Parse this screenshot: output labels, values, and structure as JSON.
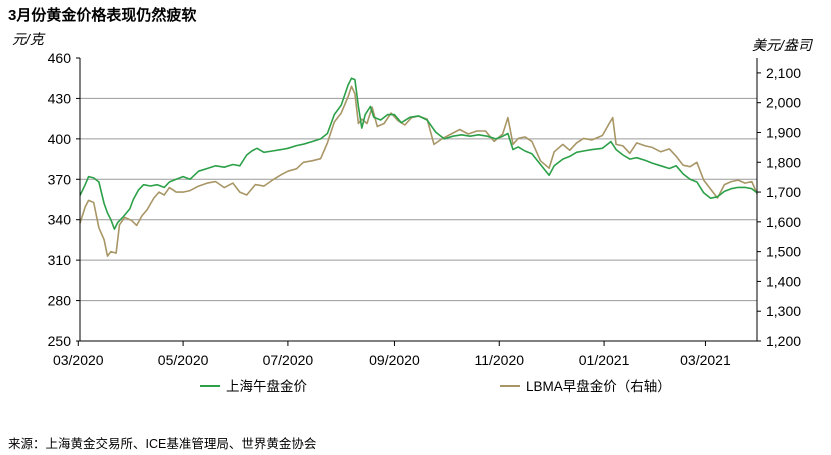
{
  "chart_data": {
    "type": "line",
    "title": "3月份黄金价格表现仍然疲软",
    "left_unit": "元/克",
    "right_unit": "美元/盎司",
    "x_range": [
      "2020-03-02",
      "2021-03-31"
    ],
    "x_ticks": [
      {
        "label": "03/2020",
        "date": "2020-03-01"
      },
      {
        "label": "05/2020",
        "date": "2020-05-01"
      },
      {
        "label": "07/2020",
        "date": "2020-07-01"
      },
      {
        "label": "09/2020",
        "date": "2020-09-01"
      },
      {
        "label": "11/2020",
        "date": "2020-11-01"
      },
      {
        "label": "01/2021",
        "date": "2021-01-01"
      },
      {
        "label": "03/2021",
        "date": "2021-03-01"
      }
    ],
    "y_left": {
      "min": 250,
      "max": 460,
      "ticks": [
        "250",
        "280",
        "310",
        "340",
        "370",
        "400",
        "430",
        "460"
      ]
    },
    "y_right": {
      "min": 1200,
      "max": 2150,
      "ticks": [
        "1,200",
        "1,300",
        "1,400",
        "1,500",
        "1,600",
        "1,700",
        "1,800",
        "1,900",
        "2,000",
        "2,100"
      ]
    },
    "grid": "horizontal",
    "legend_position": "bottom",
    "series": [
      {
        "name": "上海午盘金价",
        "axis": "left",
        "color": "#2ca048",
        "points": [
          [
            "2020-03-02",
            358
          ],
          [
            "2020-03-05",
            366
          ],
          [
            "2020-03-07",
            372
          ],
          [
            "2020-03-10",
            371
          ],
          [
            "2020-03-13",
            368
          ],
          [
            "2020-03-16",
            352
          ],
          [
            "2020-03-18",
            345
          ],
          [
            "2020-03-20",
            340
          ],
          [
            "2020-03-22",
            333
          ],
          [
            "2020-03-24",
            338
          ],
          [
            "2020-03-27",
            342
          ],
          [
            "2020-03-31",
            348
          ],
          [
            "2020-04-02",
            355
          ],
          [
            "2020-04-05",
            362
          ],
          [
            "2020-04-08",
            366
          ],
          [
            "2020-04-12",
            365
          ],
          [
            "2020-04-16",
            366
          ],
          [
            "2020-04-20",
            364
          ],
          [
            "2020-04-23",
            368
          ],
          [
            "2020-04-27",
            370
          ],
          [
            "2020-05-01",
            372
          ],
          [
            "2020-05-05",
            370
          ],
          [
            "2020-05-10",
            376
          ],
          [
            "2020-05-15",
            378
          ],
          [
            "2020-05-20",
            380
          ],
          [
            "2020-05-25",
            379
          ],
          [
            "2020-05-30",
            381
          ],
          [
            "2020-06-03",
            380
          ],
          [
            "2020-06-07",
            388
          ],
          [
            "2020-06-10",
            391
          ],
          [
            "2020-06-13",
            393
          ],
          [
            "2020-06-17",
            390
          ],
          [
            "2020-06-22",
            391
          ],
          [
            "2020-06-27",
            392
          ],
          [
            "2020-07-01",
            393
          ],
          [
            "2020-07-06",
            395
          ],
          [
            "2020-07-10",
            396
          ],
          [
            "2020-07-15",
            398
          ],
          [
            "2020-07-20",
            400
          ],
          [
            "2020-07-24",
            404
          ],
          [
            "2020-07-28",
            418
          ],
          [
            "2020-08-01",
            425
          ],
          [
            "2020-08-05",
            440
          ],
          [
            "2020-08-07",
            445
          ],
          [
            "2020-08-09",
            444
          ],
          [
            "2020-08-11",
            424
          ],
          [
            "2020-08-13",
            408
          ],
          [
            "2020-08-15",
            418
          ],
          [
            "2020-08-18",
            424
          ],
          [
            "2020-08-20",
            416
          ],
          [
            "2020-08-24",
            414
          ],
          [
            "2020-08-28",
            418
          ],
          [
            "2020-09-01",
            418
          ],
          [
            "2020-09-05",
            412
          ],
          [
            "2020-09-10",
            416
          ],
          [
            "2020-09-15",
            417
          ],
          [
            "2020-09-20",
            414
          ],
          [
            "2020-09-25",
            405
          ],
          [
            "2020-09-30",
            400
          ],
          [
            "2020-10-05",
            402
          ],
          [
            "2020-10-10",
            403
          ],
          [
            "2020-10-15",
            402
          ],
          [
            "2020-10-20",
            403
          ],
          [
            "2020-10-25",
            402
          ],
          [
            "2020-10-30",
            400
          ],
          [
            "2020-11-03",
            402
          ],
          [
            "2020-11-06",
            404
          ],
          [
            "2020-11-09",
            392
          ],
          [
            "2020-11-12",
            394
          ],
          [
            "2020-11-16",
            391
          ],
          [
            "2020-11-20",
            389
          ],
          [
            "2020-11-25",
            381
          ],
          [
            "2020-11-30",
            373
          ],
          [
            "2020-12-03",
            380
          ],
          [
            "2020-12-08",
            385
          ],
          [
            "2020-12-12",
            387
          ],
          [
            "2020-12-16",
            390
          ],
          [
            "2020-12-20",
            391
          ],
          [
            "2020-12-25",
            392
          ],
          [
            "2020-12-31",
            393
          ],
          [
            "2021-01-05",
            398
          ],
          [
            "2021-01-08",
            392
          ],
          [
            "2021-01-12",
            388
          ],
          [
            "2021-01-16",
            385
          ],
          [
            "2021-01-20",
            386
          ],
          [
            "2021-01-25",
            384
          ],
          [
            "2021-01-29",
            382
          ],
          [
            "2021-02-03",
            380
          ],
          [
            "2021-02-08",
            378
          ],
          [
            "2021-02-12",
            380
          ],
          [
            "2021-02-16",
            374
          ],
          [
            "2021-02-20",
            370
          ],
          [
            "2021-02-24",
            368
          ],
          [
            "2021-02-28",
            360
          ],
          [
            "2021-03-04",
            356
          ],
          [
            "2021-03-08",
            357
          ],
          [
            "2021-03-12",
            361
          ],
          [
            "2021-03-16",
            363
          ],
          [
            "2021-03-20",
            364
          ],
          [
            "2021-03-24",
            364
          ],
          [
            "2021-03-28",
            363
          ],
          [
            "2021-03-31",
            360
          ]
        ]
      },
      {
        "name": "LBMA早盘金价（右轴）",
        "axis": "right",
        "color": "#a89666",
        "points": [
          [
            "2020-03-02",
            1595
          ],
          [
            "2020-03-05",
            1650
          ],
          [
            "2020-03-07",
            1672
          ],
          [
            "2020-03-10",
            1665
          ],
          [
            "2020-03-13",
            1580
          ],
          [
            "2020-03-16",
            1540
          ],
          [
            "2020-03-18",
            1485
          ],
          [
            "2020-03-20",
            1500
          ],
          [
            "2020-03-23",
            1495
          ],
          [
            "2020-03-25",
            1590
          ],
          [
            "2020-03-28",
            1615
          ],
          [
            "2020-04-01",
            1605
          ],
          [
            "2020-04-04",
            1588
          ],
          [
            "2020-04-07",
            1620
          ],
          [
            "2020-04-10",
            1640
          ],
          [
            "2020-04-14",
            1680
          ],
          [
            "2020-04-17",
            1700
          ],
          [
            "2020-04-20",
            1690
          ],
          [
            "2020-04-23",
            1715
          ],
          [
            "2020-04-27",
            1700
          ],
          [
            "2020-05-01",
            1700
          ],
          [
            "2020-05-05",
            1705
          ],
          [
            "2020-05-10",
            1720
          ],
          [
            "2020-05-15",
            1730
          ],
          [
            "2020-05-20",
            1735
          ],
          [
            "2020-05-25",
            1715
          ],
          [
            "2020-05-30",
            1730
          ],
          [
            "2020-06-03",
            1700
          ],
          [
            "2020-06-07",
            1690
          ],
          [
            "2020-06-12",
            1725
          ],
          [
            "2020-06-17",
            1720
          ],
          [
            "2020-06-22",
            1740
          ],
          [
            "2020-06-27",
            1758
          ],
          [
            "2020-07-01",
            1770
          ],
          [
            "2020-07-06",
            1778
          ],
          [
            "2020-07-10",
            1800
          ],
          [
            "2020-07-15",
            1805
          ],
          [
            "2020-07-20",
            1812
          ],
          [
            "2020-07-24",
            1865
          ],
          [
            "2020-07-28",
            1935
          ],
          [
            "2020-08-01",
            1965
          ],
          [
            "2020-08-05",
            2020
          ],
          [
            "2020-08-07",
            2055
          ],
          [
            "2020-08-09",
            2030
          ],
          [
            "2020-08-11",
            1930
          ],
          [
            "2020-08-13",
            1945
          ],
          [
            "2020-08-16",
            1930
          ],
          [
            "2020-08-19",
            1985
          ],
          [
            "2020-08-22",
            1920
          ],
          [
            "2020-08-26",
            1930
          ],
          [
            "2020-08-30",
            1965
          ],
          [
            "2020-09-03",
            1940
          ],
          [
            "2020-09-07",
            1925
          ],
          [
            "2020-09-11",
            1950
          ],
          [
            "2020-09-15",
            1955
          ],
          [
            "2020-09-20",
            1945
          ],
          [
            "2020-09-24",
            1860
          ],
          [
            "2020-09-29",
            1880
          ],
          [
            "2020-10-04",
            1895
          ],
          [
            "2020-10-09",
            1910
          ],
          [
            "2020-10-14",
            1895
          ],
          [
            "2020-10-19",
            1905
          ],
          [
            "2020-10-24",
            1905
          ],
          [
            "2020-10-29",
            1870
          ],
          [
            "2020-11-03",
            1895
          ],
          [
            "2020-11-06",
            1950
          ],
          [
            "2020-11-09",
            1860
          ],
          [
            "2020-11-12",
            1880
          ],
          [
            "2020-11-16",
            1885
          ],
          [
            "2020-11-20",
            1870
          ],
          [
            "2020-11-25",
            1805
          ],
          [
            "2020-11-30",
            1780
          ],
          [
            "2020-12-03",
            1835
          ],
          [
            "2020-12-08",
            1860
          ],
          [
            "2020-12-12",
            1840
          ],
          [
            "2020-12-16",
            1865
          ],
          [
            "2020-12-20",
            1880
          ],
          [
            "2020-12-25",
            1875
          ],
          [
            "2020-12-31",
            1890
          ],
          [
            "2021-01-04",
            1930
          ],
          [
            "2021-01-06",
            1950
          ],
          [
            "2021-01-08",
            1860
          ],
          [
            "2021-01-12",
            1855
          ],
          [
            "2021-01-16",
            1830
          ],
          [
            "2021-01-20",
            1865
          ],
          [
            "2021-01-25",
            1855
          ],
          [
            "2021-01-29",
            1850
          ],
          [
            "2021-02-03",
            1835
          ],
          [
            "2021-02-08",
            1845
          ],
          [
            "2021-02-12",
            1820
          ],
          [
            "2021-02-16",
            1790
          ],
          [
            "2021-02-20",
            1785
          ],
          [
            "2021-02-24",
            1800
          ],
          [
            "2021-02-28",
            1740
          ],
          [
            "2021-03-04",
            1710
          ],
          [
            "2021-03-08",
            1680
          ],
          [
            "2021-03-12",
            1725
          ],
          [
            "2021-03-16",
            1735
          ],
          [
            "2021-03-20",
            1740
          ],
          [
            "2021-03-24",
            1730
          ],
          [
            "2021-03-28",
            1735
          ],
          [
            "2021-03-31",
            1695
          ]
        ]
      }
    ],
    "source": "来源：上海黄金交易所、ICE基准管理局、世界黄金协会"
  }
}
